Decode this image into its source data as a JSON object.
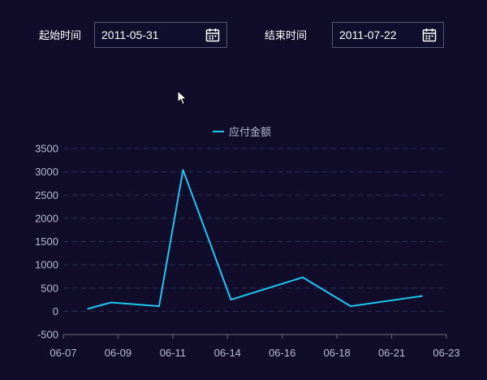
{
  "filters": {
    "start_label": "起始时间",
    "start_value": "2011-05-31",
    "end_label": "结束时间",
    "end_value": "2011-07-22",
    "calendar_icon": "calendar-icon"
  },
  "colors": {
    "background": "#100c2a",
    "line": "#1cc8f2",
    "grid": "#2a3158",
    "axis_text": "#b8bcd6"
  },
  "chart_data": {
    "type": "line",
    "legend_position": "top-center",
    "series": [
      {
        "name": "应付金额",
        "points": [
          {
            "x": "2011-06-08",
            "y": 50
          },
          {
            "x": "2011-06-09",
            "y": 190
          },
          {
            "x": "2011-06-11",
            "y": 110
          },
          {
            "x": "2011-06-12",
            "y": 3040
          },
          {
            "x": "2011-06-14",
            "y": 250
          },
          {
            "x": "2011-06-17",
            "y": 730
          },
          {
            "x": "2011-06-19",
            "y": 110
          },
          {
            "x": "2011-06-22",
            "y": 330
          }
        ]
      }
    ],
    "x_ticks": [
      "06-07",
      "06-09",
      "06-11",
      "06-14",
      "06-16",
      "06-18",
      "06-21",
      "06-23"
    ],
    "y_ticks": [
      3500,
      3000,
      2500,
      2000,
      1500,
      1000,
      500,
      0,
      -500
    ],
    "ylim": [
      -500,
      3500
    ],
    "xlim": [
      "2011-06-07",
      "2011-06-23"
    ],
    "grid": true
  }
}
